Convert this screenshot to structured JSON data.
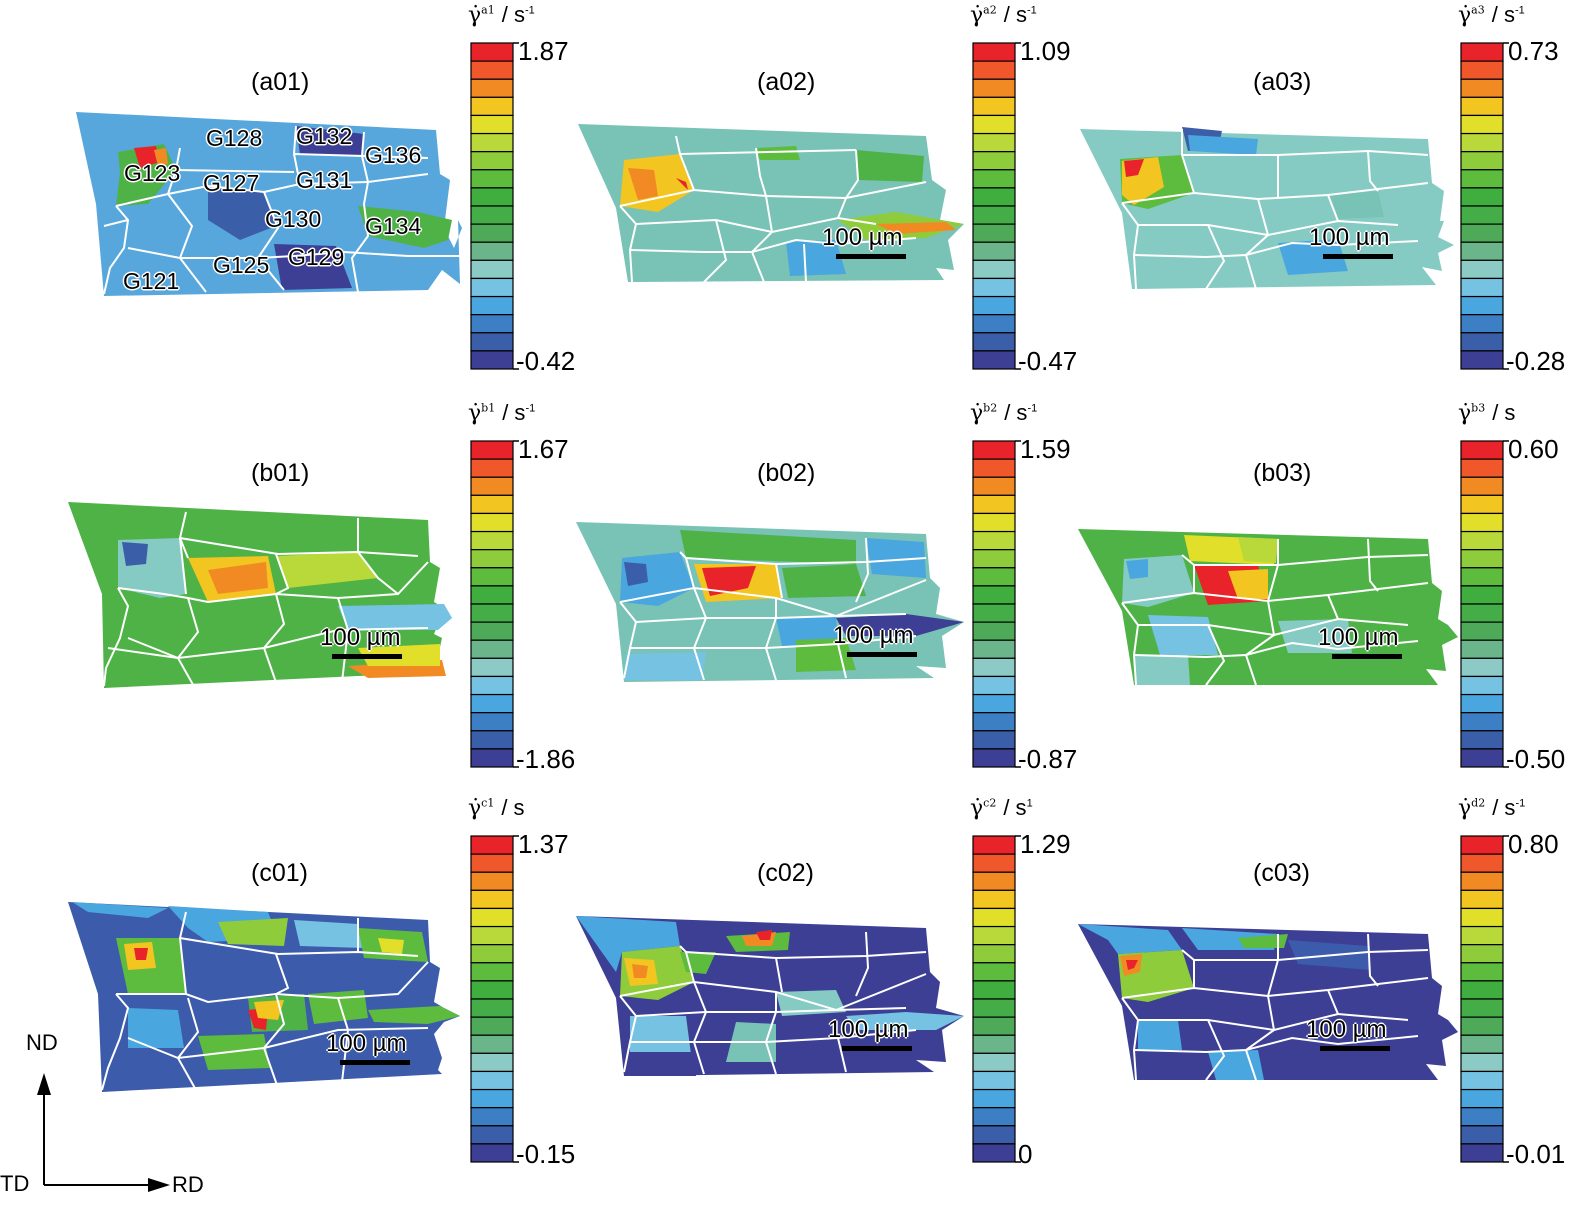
{
  "panels": [
    {
      "label": "(a01)",
      "cbar_symbol": "γ̇",
      "cbar_sup": "a1",
      "cbar_unit": "/ s",
      "cbar_unit_sup": "-1",
      "max": "1.87",
      "min": "-0.42",
      "scale": ""
    },
    {
      "label": "(a02)",
      "cbar_symbol": "γ̇",
      "cbar_sup": "a2",
      "cbar_unit": "/ s",
      "cbar_unit_sup": "-1",
      "max": "1.09",
      "min": "-0.47",
      "scale": "100 µm"
    },
    {
      "label": "(a03)",
      "cbar_symbol": "γ̇",
      "cbar_sup": "a3",
      "cbar_unit": "/ s",
      "cbar_unit_sup": "-1",
      "max": "0.73",
      "min": "-0.28",
      "scale": "100 µm"
    },
    {
      "label": "(b01)",
      "cbar_symbol": "γ̇",
      "cbar_sup": "b1",
      "cbar_unit": "/ s",
      "cbar_unit_sup": "-1",
      "max": "1.67",
      "min": "-1.86",
      "scale": "100 µm"
    },
    {
      "label": "(b02)",
      "cbar_symbol": "γ̇",
      "cbar_sup": "b2",
      "cbar_unit": "/ s",
      "cbar_unit_sup": "-1",
      "max": "1.59",
      "min": "-0.87",
      "scale": "100 µm"
    },
    {
      "label": "(b03)",
      "cbar_symbol": "γ̇",
      "cbar_sup": "b3",
      "cbar_unit": "/ s",
      "cbar_unit_sup": "",
      "max": "0.60",
      "min": "-0.50",
      "scale": "100 µm"
    },
    {
      "label": "(c01)",
      "cbar_symbol": "γ̇",
      "cbar_sup": "c1",
      "cbar_unit": "/ s",
      "cbar_unit_sup": "",
      "max": "1.37",
      "min": "-0.15",
      "scale": "100 µm"
    },
    {
      "label": "(c02)",
      "cbar_symbol": "γ̇",
      "cbar_sup": "c2",
      "cbar_unit": "/ s",
      "cbar_unit_sup": "1",
      "max": "1.29",
      "min": "0",
      "scale": "100 µm"
    },
    {
      "label": "(c03)",
      "cbar_symbol": "γ̇",
      "cbar_sup": "d2",
      "cbar_unit": "/ s",
      "cbar_unit_sup": "-1",
      "max": "0.80",
      "min": "-0.01",
      "scale": "100 µm"
    }
  ],
  "grain_labels": [
    "G128",
    "G132",
    "G136",
    "G123",
    "G127",
    "G131",
    "G130",
    "G134",
    "G121",
    "G125",
    "G129"
  ],
  "axes": {
    "nd": "ND",
    "td": "TD",
    "rd": "RD"
  },
  "colormap": [
    "#e8232a",
    "#f0572a",
    "#f28a24",
    "#f3c520",
    "#e1df2a",
    "#b9d83a",
    "#8fcc3c",
    "#5dbb3e",
    "#3fae3f",
    "#45ad47",
    "#4ea958",
    "#6ab68a",
    "#8ccbc5",
    "#75c2e3",
    "#4aa6de",
    "#3c7fc4",
    "#3b5ea8",
    "#3c3f93"
  ]
}
